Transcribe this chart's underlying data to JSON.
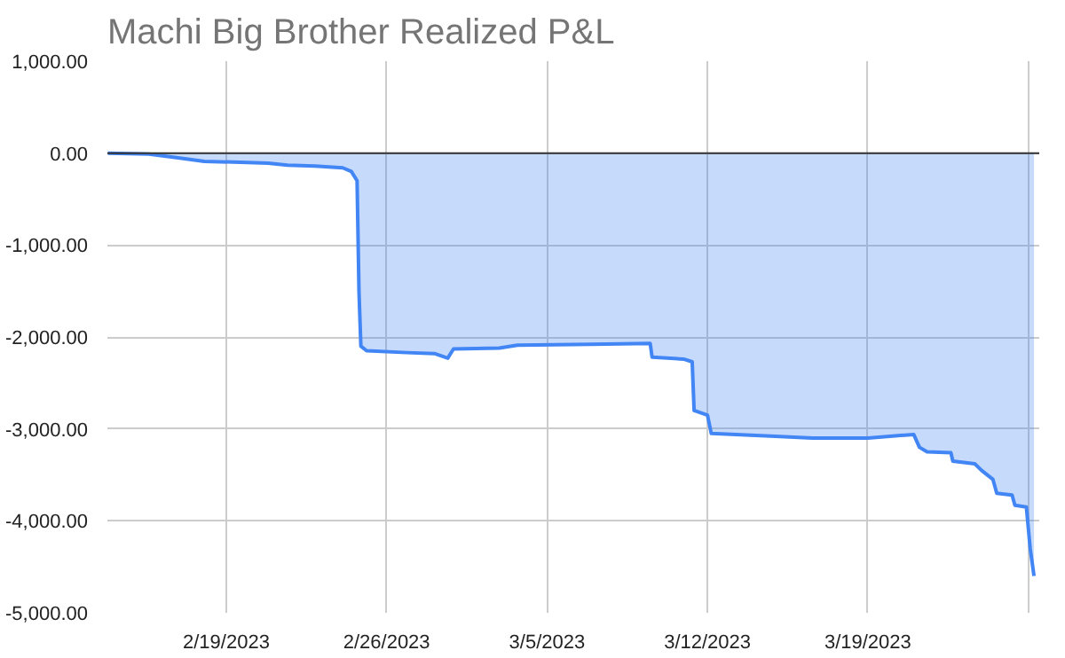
{
  "chart_data": {
    "type": "area",
    "title": "Machi Big Brother Realized P&L",
    "x": [
      "2023-02-13T20:00",
      "2023-02-15T15:00",
      "2023-02-16T20:00",
      "2023-02-18T01:00",
      "2023-02-19T15:00",
      "2023-02-20T20:00",
      "2023-02-21T16:00",
      "2023-02-22T21:00",
      "2023-02-24T02:00",
      "2023-02-24T11:00",
      "2023-02-24T17:00",
      "2023-02-24T19:00",
      "2023-02-24T21:00",
      "2023-02-25T03:00",
      "2023-02-26T21:00",
      "2023-02-28T02:00",
      "2023-02-28T16:00",
      "2023-02-28T22:00",
      "2023-03-02T22:00",
      "2023-03-03T17:00",
      "2023-03-06T22:00",
      "2023-03-09T12:00",
      "2023-03-09T14:00",
      "2023-03-10T23:00",
      "2023-03-11T08:00",
      "2023-03-11T10:00",
      "2023-03-12T00:00",
      "2023-03-12T04:00",
      "2023-03-14T23:00",
      "2023-03-16T14:00",
      "2023-03-19T00:00",
      "2023-03-21T00:00",
      "2023-03-21T06:00",
      "2023-03-21T14:00",
      "2023-03-22T15:00",
      "2023-03-22T17:00",
      "2023-03-23T16:00",
      "2023-03-23T23:00",
      "2023-03-24T11:00",
      "2023-03-24T15:00",
      "2023-03-25T07:00",
      "2023-03-25T10:00",
      "2023-03-25T22:00",
      "2023-03-26T02:00",
      "2023-03-26T06:00"
    ],
    "series": [
      {
        "color": "#4285f4",
        "values": [
          0,
          -10,
          -50,
          -90,
          -100,
          -110,
          -130,
          -140,
          -160,
          -200,
          -300,
          -1500,
          -2100,
          -2150,
          -2170,
          -2180,
          -2230,
          -2130,
          -2120,
          -2090,
          -2080,
          -2070,
          -2220,
          -2240,
          -2270,
          -2800,
          -2850,
          -3050,
          -3080,
          -3100,
          -3100,
          -3060,
          -3200,
          -3250,
          -3260,
          -3350,
          -3380,
          -3450,
          -3550,
          -3700,
          -3720,
          -3830,
          -3850,
          -4300,
          -4600
        ]
      }
    ],
    "xlim": [
      "2023-02-13T19:30",
      "2023-03-26T11:30"
    ],
    "xticks": [
      {
        "value": "2023-02-19",
        "label": "2/19/2023"
      },
      {
        "value": "2023-02-26",
        "label": "2/26/2023"
      },
      {
        "value": "2023-03-05",
        "label": "3/5/2023"
      },
      {
        "value": "2023-03-12",
        "label": "3/12/2023"
      },
      {
        "value": "2023-03-19",
        "label": "3/19/2023"
      },
      {
        "value": "2023-03-26",
        "label": null
      }
    ],
    "ylim": [
      -5000,
      1000
    ],
    "yticks": [
      {
        "value": 1000,
        "label": "1,000.00"
      },
      {
        "value": 0,
        "label": "0.00"
      },
      {
        "value": -1000,
        "label": "-1,000.00"
      },
      {
        "value": -2000,
        "label": "-2,000.00"
      },
      {
        "value": -3000,
        "label": "-3,000.00"
      },
      {
        "value": -4000,
        "label": "-4,000.00"
      },
      {
        "value": -5000,
        "label": "-5,000.00"
      }
    ],
    "ref_lines": [
      {
        "axis": "y",
        "value": 0,
        "color": "#333333"
      }
    ],
    "grid": true
  }
}
